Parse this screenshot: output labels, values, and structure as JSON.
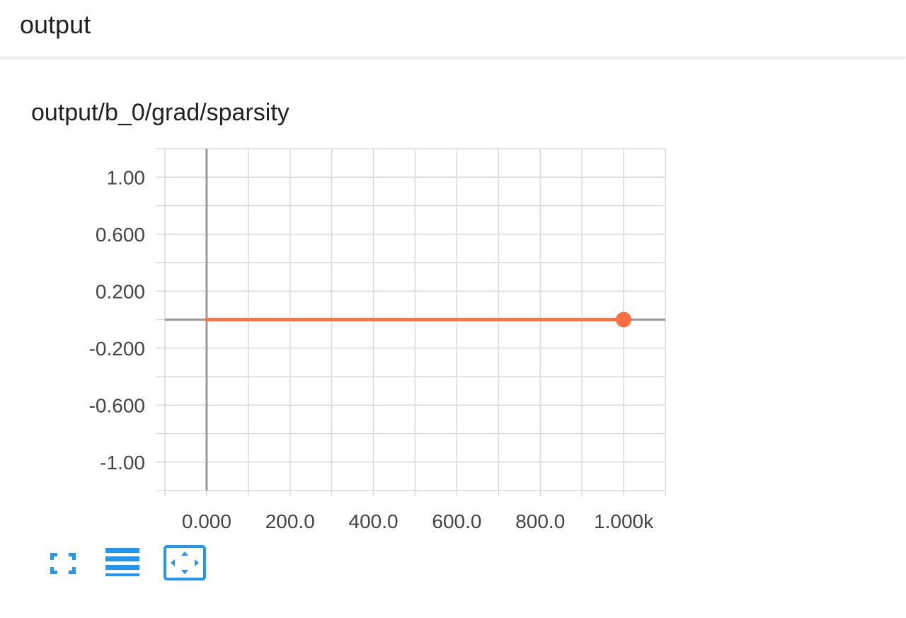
{
  "header": {
    "title": "output"
  },
  "card": {
    "title": "output/b_0/grad/sparsity"
  },
  "colors": {
    "accent": "#2196f3",
    "series": "#ff7043",
    "axis": "#999999",
    "grid": "#dadada"
  },
  "toolbar": {
    "items": [
      {
        "icon": "fullscreen-icon"
      },
      {
        "icon": "menu-lines-icon"
      },
      {
        "icon": "fit-domain-icon"
      }
    ]
  },
  "chart_data": {
    "type": "line",
    "title": "output/b_0/grad/sparsity",
    "xlabel": "",
    "ylabel": "",
    "xlim": [
      -100,
      1100
    ],
    "ylim": [
      -1.2,
      1.2
    ],
    "x_ticks": [
      {
        "value": 0,
        "label": "0.000"
      },
      {
        "value": 200,
        "label": "200.0"
      },
      {
        "value": 400,
        "label": "400.0"
      },
      {
        "value": 600,
        "label": "600.0"
      },
      {
        "value": 800,
        "label": "800.0"
      },
      {
        "value": 1000,
        "label": "1.000k"
      }
    ],
    "y_ticks": [
      {
        "value": 1.0,
        "label": "1.00"
      },
      {
        "value": 0.6,
        "label": "0.600"
      },
      {
        "value": 0.2,
        "label": "0.200"
      },
      {
        "value": -0.2,
        "label": "-0.200"
      },
      {
        "value": -0.6,
        "label": "-0.600"
      },
      {
        "value": -1.0,
        "label": "-1.00"
      }
    ],
    "grid": true,
    "series": [
      {
        "x": [
          0,
          1000
        ],
        "y": [
          0,
          0
        ]
      }
    ]
  }
}
